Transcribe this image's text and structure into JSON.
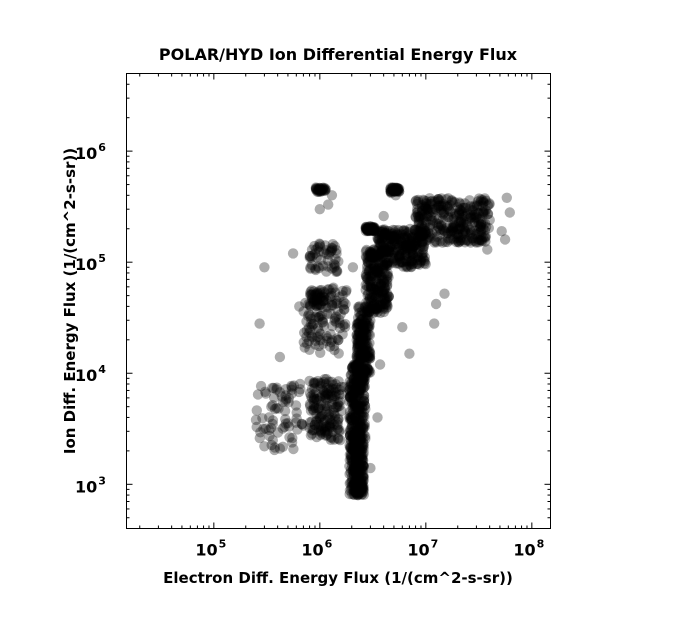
{
  "chart_data": {
    "type": "scatter",
    "title": "POLAR/HYD  Ion Differential Energy Flux",
    "xlabel": "Electron Diff. Energy Flux (1/(cm^2-s-sr))",
    "ylabel": "Ion Diff. Energy Flux (1/(cm^2-s-sr))",
    "x_scale": "log",
    "y_scale": "log",
    "xlim": [
      15000,
      150000000
    ],
    "ylim": [
      400,
      5000000
    ],
    "x_ticks": [
      {
        "value": 100000,
        "base": "10",
        "exp": "5"
      },
      {
        "value": 1000000,
        "base": "10",
        "exp": "6"
      },
      {
        "value": 10000000,
        "base": "10",
        "exp": "7"
      },
      {
        "value": 100000000,
        "base": "10",
        "exp": "8"
      }
    ],
    "y_ticks": [
      {
        "value": 1000,
        "base": "10",
        "exp": "3"
      },
      {
        "value": 10000,
        "base": "10",
        "exp": "4"
      },
      {
        "value": 100000,
        "base": "10",
        "exp": "5"
      },
      {
        "value": 1000000,
        "base": "10",
        "exp": "6"
      }
    ],
    "grid": false,
    "marker_color": "#000000",
    "marker_opacity": 0.32,
    "clusters": [
      {
        "x": [
          1900000,
          2600000
        ],
        "y": [
          800,
          3000
        ],
        "n": 260
      },
      {
        "x": [
          1900000,
          2700000
        ],
        "y": [
          2500,
          12000
        ],
        "n": 260
      },
      {
        "x": [
          2200000,
          3000000
        ],
        "y": [
          10000,
          40000
        ],
        "n": 180
      },
      {
        "x": [
          2700000,
          4500000
        ],
        "y": [
          35000,
          130000
        ],
        "n": 220
      },
      {
        "x": [
          3500000,
          10000000
        ],
        "y": [
          90000,
          200000
        ],
        "n": 260
      },
      {
        "x": [
          8000000,
          40000000
        ],
        "y": [
          150000,
          380000
        ],
        "n": 320
      },
      {
        "x": [
          2700000,
          3300000
        ],
        "y": [
          190000,
          210000
        ],
        "n": 60
      },
      {
        "x": [
          4600000,
          5600000
        ],
        "y": [
          430000,
          470000
        ],
        "n": 40
      },
      {
        "x": [
          900000,
          1150000
        ],
        "y": [
          430000,
          470000
        ],
        "n": 30
      },
      {
        "x": [
          800000,
          1600000
        ],
        "y": [
          2500,
          9000
        ],
        "n": 160
      },
      {
        "x": [
          700000,
          1800000
        ],
        "y": [
          15000,
          60000
        ],
        "n": 120
      },
      {
        "x": [
          800000,
          1100000
        ],
        "y": [
          40000,
          55000
        ],
        "n": 30
      },
      {
        "x": [
          800000,
          1500000
        ],
        "y": [
          80000,
          150000
        ],
        "n": 50
      },
      {
        "x": [
          250000,
          700000
        ],
        "y": [
          2000,
          8000
        ],
        "n": 70
      }
    ],
    "points": [
      [
        270000,
        28000
      ],
      [
        300000,
        90000
      ],
      [
        420000,
        14000
      ],
      [
        560000,
        120000
      ],
      [
        640000,
        40000
      ],
      [
        1200000,
        330000
      ],
      [
        1300000,
        400000
      ],
      [
        2050000,
        90000
      ],
      [
        3500000,
        4000
      ],
      [
        4000000,
        260000
      ],
      [
        6000000,
        26000
      ],
      [
        7000000,
        15000
      ],
      [
        12000000,
        28000
      ],
      [
        12500000,
        42000
      ],
      [
        15000000,
        52000
      ],
      [
        30000000,
        150000
      ],
      [
        38000000,
        130000
      ],
      [
        40000000,
        240000
      ],
      [
        52000000,
        190000
      ],
      [
        56000000,
        160000
      ],
      [
        58000000,
        380000
      ],
      [
        62000000,
        280000
      ],
      [
        3000000,
        1400
      ],
      [
        2300000,
        800
      ],
      [
        250000,
        3800
      ],
      [
        300000,
        2200
      ],
      [
        1700000,
        7500
      ],
      [
        1500000,
        5500
      ],
      [
        1000000,
        300000
      ],
      [
        4700000,
        420000
      ],
      [
        5200000,
        400000
      ],
      [
        3700000,
        12000
      ]
    ]
  }
}
